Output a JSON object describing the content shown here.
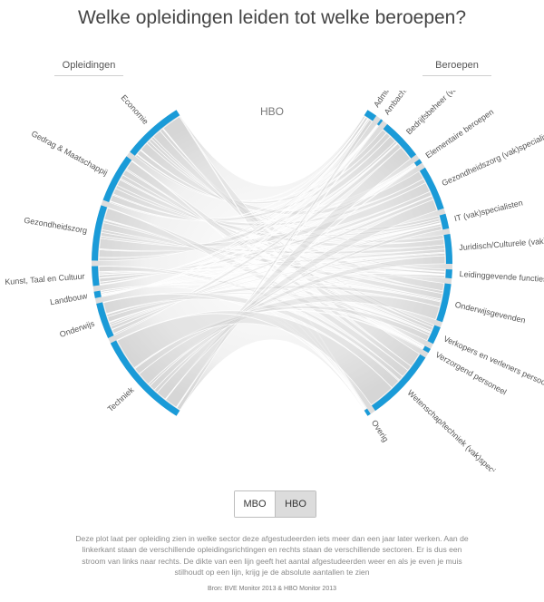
{
  "page": {
    "title": "Welke opleidingen leiden tot welke beroepen?",
    "left_header": "Opleidingen",
    "right_header": "Beroepen",
    "level_label": "HBO",
    "description": "Deze plot laat per opleiding zien in welke sector deze afgestudeerden iets meer dan een jaar later werken. Aan de linkerkant staan de verschillende opleidingsrichtingen en rechts staan de verschillende sectoren. Er is dus een stroom van links naar rechts. De dikte van een lijn geeft het aantal afgestudeerden weer en als je even je muis stilhoudt op een lijn, krijg je de absolute aantallen te zien",
    "source": "Bron: BVE Monitor 2013 & HBO Monitor 2013"
  },
  "toggle": {
    "options": [
      "MBO",
      "HBO"
    ],
    "selected": "HBO"
  },
  "colors": {
    "arc": "#1a9bd8",
    "ribbon": "#cccccc",
    "toggle_active": "#dcdcdc"
  },
  "opleidingen": [
    {
      "label": "Economie",
      "share": 0.19
    },
    {
      "label": "Gedrag & Maatschappij",
      "share": 0.15
    },
    {
      "label": "Gezondheidszorg",
      "share": 0.17
    },
    {
      "label": "Kunst, Taal en Cultuur",
      "share": 0.06
    },
    {
      "label": "Landbouw",
      "share": 0.02
    },
    {
      "label": "Onderwijs",
      "share": 0.11
    },
    {
      "label": "Techniek",
      "share": 0.3
    }
  ],
  "beroepen": [
    {
      "label": "Administratief personeel",
      "share": 0.035
    },
    {
      "label": "Ambachtslieden",
      "share": 0.008
    },
    {
      "label": "Bedrijfsbeheer (vak)specialisten",
      "share": 0.14
    },
    {
      "label": "Elementaire beroepen",
      "share": 0.015
    },
    {
      "label": "Gezondheidszorg (vak)specialisten",
      "share": 0.15
    },
    {
      "label": "IT (vak)specialisten",
      "share": 0.05
    },
    {
      "label": "Juridisch/Culturele (vak)specialisten",
      "share": 0.1
    },
    {
      "label": "Leidinggevende functies",
      "share": 0.03
    },
    {
      "label": "Onderwijsgevenden",
      "share": 0.13
    },
    {
      "label": "Verkopers en verleners persoonlijke diensten",
      "share": 0.06
    },
    {
      "label": "Verzorgend personeel",
      "share": 0.015
    },
    {
      "label": "Wetenschap/techniek (vak)specialisten",
      "share": 0.245
    },
    {
      "label": "Overig",
      "share": 0.012
    }
  ]
}
